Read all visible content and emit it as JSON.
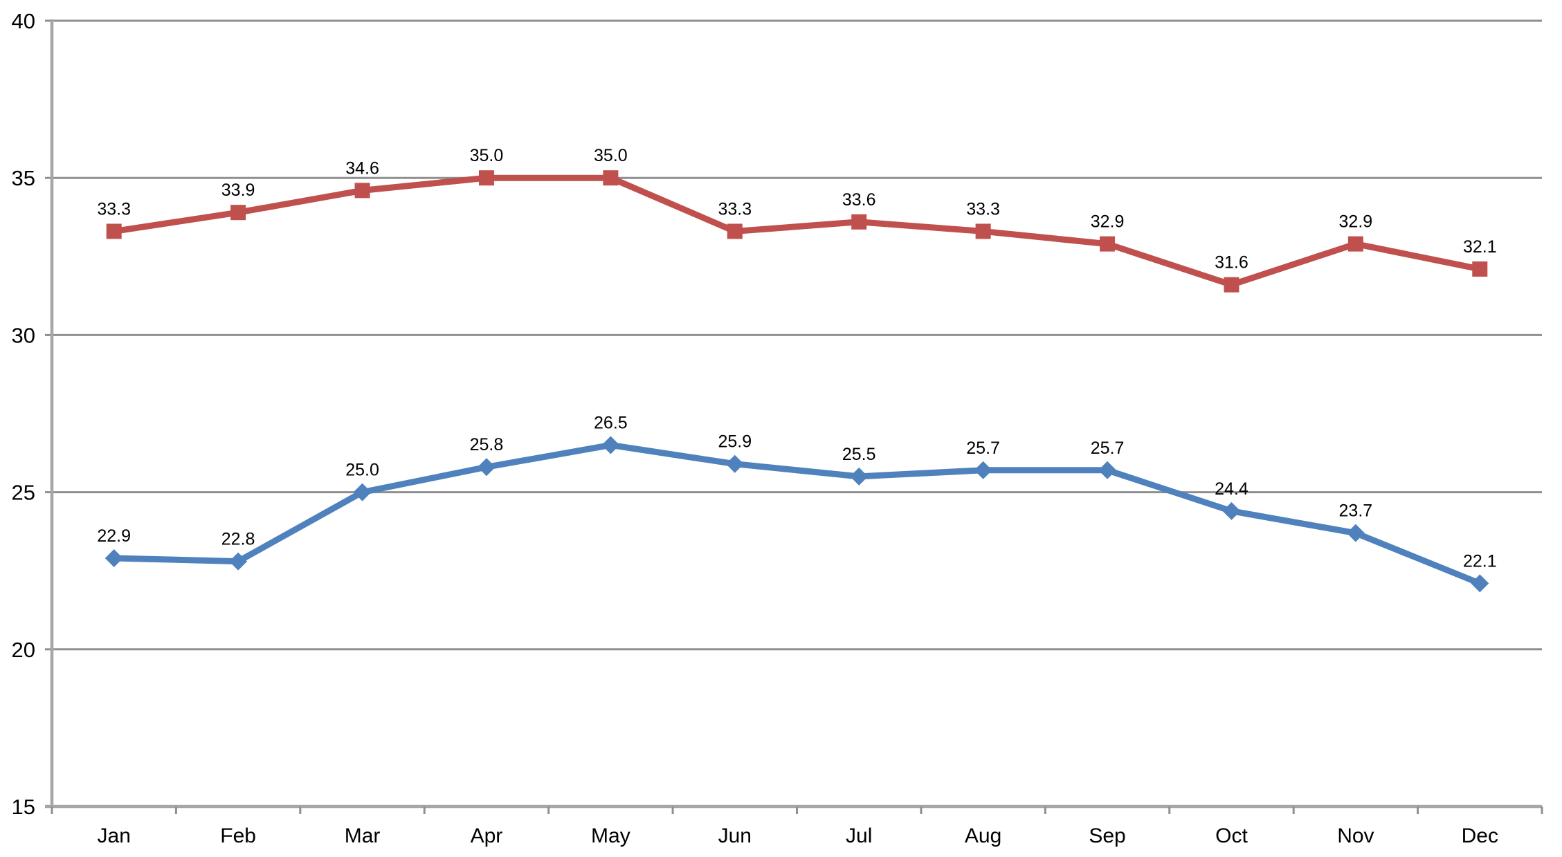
{
  "chart_data": {
    "type": "line",
    "title": "",
    "xlabel": "",
    "ylabel": "",
    "legend_position": "none",
    "grid": true,
    "background": "#ffffff",
    "categories": [
      "Jan",
      "Feb",
      "Mar",
      "Apr",
      "May",
      "Jun",
      "Jul",
      "Aug",
      "Sep",
      "Oct",
      "Nov",
      "Dec"
    ],
    "ylim": [
      15,
      40
    ],
    "ytick_step": 5,
    "ytick_labels": [
      "15",
      "20",
      "25",
      "30",
      "35",
      "40"
    ],
    "series": [
      {
        "id": "upper-red-series",
        "color": "#C0504D",
        "marker": "square",
        "values": [
          33.3,
          33.9,
          34.6,
          35.0,
          35.0,
          33.3,
          33.6,
          33.3,
          32.9,
          31.6,
          32.9,
          32.1
        ],
        "labels": [
          "33.3",
          "33.9",
          "34.6",
          "35.0",
          "35.0",
          "33.3",
          "33.6",
          "33.3",
          "32.9",
          "31.6",
          "32.9",
          "32.1"
        ]
      },
      {
        "id": "lower-blue-series",
        "color": "#4F81BD",
        "marker": "diamond",
        "values": [
          22.9,
          22.8,
          25.0,
          25.8,
          26.5,
          25.9,
          25.5,
          25.7,
          25.7,
          24.4,
          23.7,
          22.1
        ],
        "labels": [
          "22.9",
          "22.8",
          "25.0",
          "25.8",
          "26.5",
          "25.9",
          "25.5",
          "25.7",
          "25.7",
          "24.4",
          "23.7",
          "22.1"
        ]
      }
    ],
    "colors": {
      "gridline": "#8f8f8f",
      "axis": "#a6a6a6",
      "tick": "#8f8f8f",
      "label": "#000000"
    }
  }
}
